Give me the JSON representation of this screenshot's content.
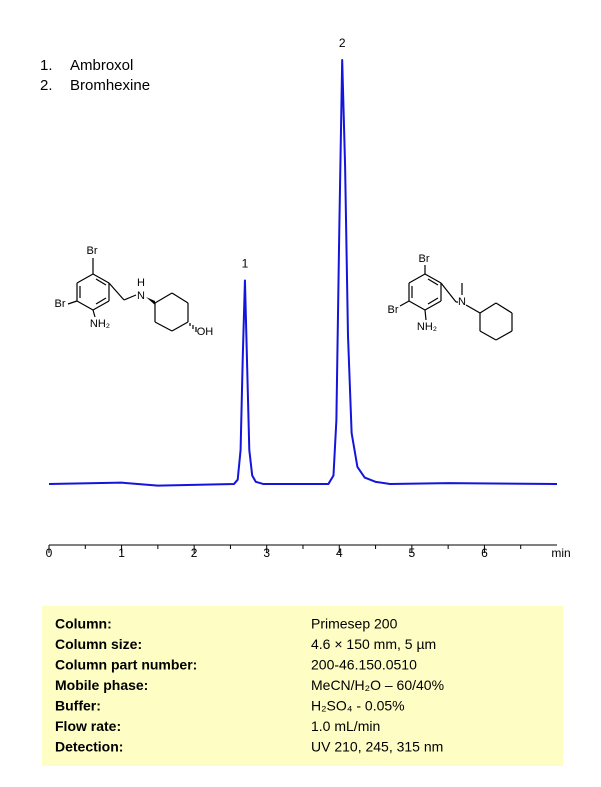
{
  "chart_data": {
    "type": "line",
    "legend": [
      {
        "number": "1.",
        "name": "Ambroxol"
      },
      {
        "number": "2.",
        "name": "Bromhexine"
      }
    ],
    "x": [
      0,
      1,
      1.5,
      2.55,
      2.6,
      2.64,
      2.67,
      2.7,
      2.73,
      2.76,
      2.8,
      2.85,
      2.95,
      3.85,
      3.92,
      3.96,
      4.0,
      4.04,
      4.08,
      4.12,
      4.17,
      4.25,
      4.35,
      4.5,
      4.7,
      5.5,
      7
    ],
    "values": [
      0,
      0.3,
      -0.4,
      0,
      1,
      8,
      30,
      48,
      28,
      8,
      2,
      0.5,
      0,
      0,
      2,
      15,
      60,
      100,
      75,
      35,
      12,
      4,
      1.5,
      0.5,
      0,
      0.2,
      0
    ],
    "color": "#1414dc",
    "annotations": [
      {
        "text": "1",
        "x": 2.7
      },
      {
        "text": "2",
        "x": 4.04
      }
    ],
    "xlim": [
      0,
      7
    ],
    "xticks": [
      0,
      1,
      2,
      3,
      4,
      5,
      6
    ],
    "xminorticks": [
      0.5,
      1.5,
      2.5,
      3.5,
      4.5,
      5.5,
      6.5
    ],
    "xlabel": "min",
    "ylim": [
      -14.4,
      100
    ],
    "structures": [
      {
        "labels": [
          "Br",
          "Br",
          "NH₂",
          "H",
          "N",
          "OH"
        ]
      },
      {
        "labels": [
          "Br",
          "Br",
          "NH₂",
          "N"
        ]
      }
    ]
  },
  "conditions": [
    [
      "Column:",
      "Primesep  200"
    ],
    [
      "Column size:",
      "4.6 × 150 mm, 5 µm"
    ],
    [
      "Column part number:",
      "200-46.150.0510"
    ],
    [
      "Mobile phase:",
      "MeCN/H₂O – 60/40%"
    ],
    [
      "Buffer:",
      "H₂SO₄  - 0.05%"
    ],
    [
      "Flow rate:",
      "1.0 mL/min"
    ],
    [
      "Detection:",
      " UV 210, 245, 315  nm"
    ]
  ]
}
